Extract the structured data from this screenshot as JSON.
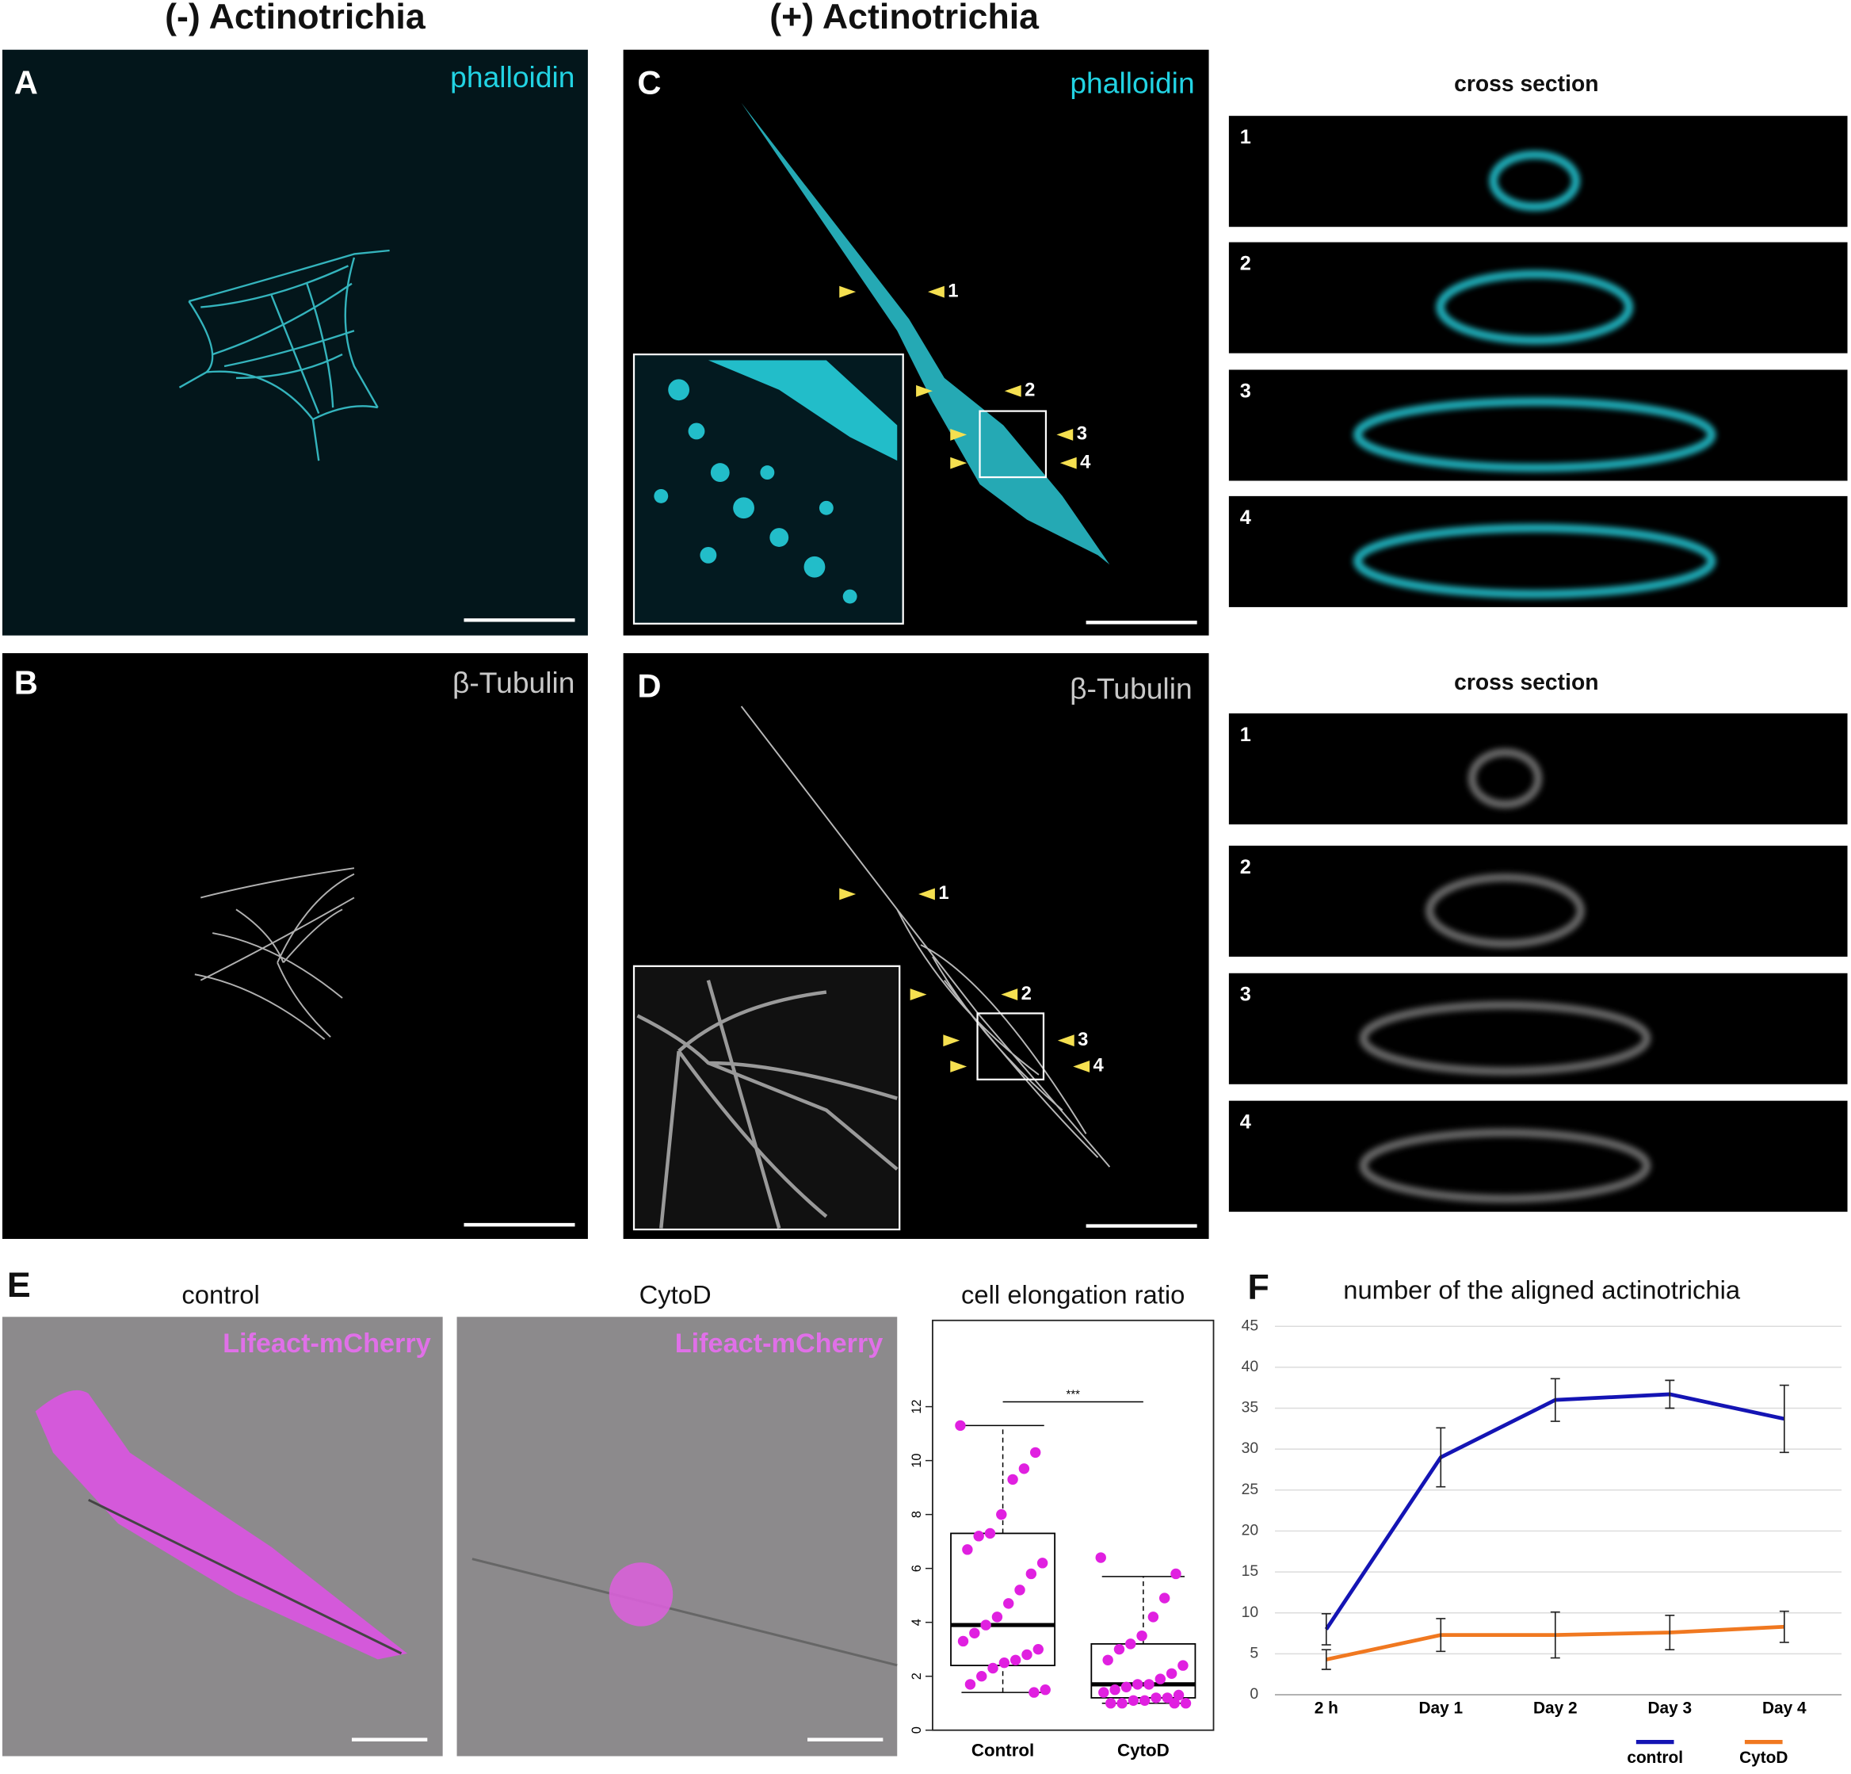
{
  "figure": {
    "headers": [
      "(-) Actinotrichia",
      "(+) Actinotrichia"
    ],
    "panels": [
      {
        "letter": "A",
        "stain": "phalloidin"
      },
      {
        "letter": "B",
        "stain": "β-Tubulin"
      },
      {
        "letter": "C",
        "stain": "phalloidin"
      },
      {
        "letter": "D",
        "stain": "β-Tubulin"
      }
    ],
    "arrow_labels": [
      "1",
      "2",
      "3",
      "4"
    ],
    "cross_section_title": "cross section",
    "cross_section_labels": [
      "1",
      "2",
      "3",
      "4"
    ],
    "panel_e": {
      "letter": "E",
      "images": [
        {
          "title": "control",
          "stain": "Lifeact-mCherry"
        },
        {
          "title": "CytoD",
          "stain": "Lifeact-mCherry"
        }
      ]
    },
    "panel_f_letter": "F"
  },
  "chart_data": [
    {
      "type": "box",
      "title": "cell elongation ratio",
      "categories": [
        "Control",
        "CytoD"
      ],
      "boxes": [
        {
          "whisker_low": 1.4,
          "q1": 2.4,
          "median": 3.9,
          "q3": 7.3,
          "whisker_high": 11.3,
          "points": [
            11.3,
            10.3,
            9.7,
            9.3,
            8.0,
            7.3,
            7.2,
            6.7,
            6.2,
            5.8,
            5.2,
            4.7,
            4.2,
            3.9,
            3.6,
            3.3,
            3.0,
            2.8,
            2.6,
            2.5,
            2.3,
            2.0,
            1.7,
            1.5,
            1.4
          ]
        },
        {
          "whisker_low": 1.0,
          "q1": 1.2,
          "median": 1.7,
          "q3": 3.2,
          "whisker_high": 5.7,
          "points": [
            6.4,
            5.8,
            4.9,
            4.2,
            3.5,
            3.2,
            3.0,
            2.6,
            2.4,
            2.1,
            1.9,
            1.7,
            1.7,
            1.6,
            1.5,
            1.4,
            1.3,
            1.2,
            1.2,
            1.1,
            1.1,
            1.0,
            1.0,
            1.0,
            1.0
          ]
        }
      ],
      "point_color": "#e020e0",
      "annotation": "***",
      "ylim": [
        0,
        15.2
      ],
      "yticks": [
        0,
        2,
        4,
        6,
        8,
        10,
        12
      ]
    },
    {
      "type": "line",
      "title": "number of the aligned actinotrichia",
      "categories": [
        "2 h",
        "Day 1",
        "Day 2",
        "Day 3",
        "Day 4"
      ],
      "series": [
        {
          "name": "control",
          "color": "#1414b4",
          "values": [
            8,
            29,
            36,
            36.7,
            33.7
          ],
          "errors": [
            1.9,
            3.6,
            2.6,
            1.7,
            4.1
          ]
        },
        {
          "name": "CytoD",
          "color": "#f07820",
          "values": [
            4.3,
            7.3,
            7.3,
            7.6,
            8.3
          ],
          "errors": [
            1.2,
            2.0,
            2.8,
            2.1,
            1.9
          ]
        }
      ],
      "ylim": [
        0,
        45
      ],
      "yticks": [
        0,
        5,
        10,
        15,
        20,
        25,
        30,
        35,
        40,
        45
      ],
      "grid": true,
      "legend": "bottom-right"
    }
  ]
}
